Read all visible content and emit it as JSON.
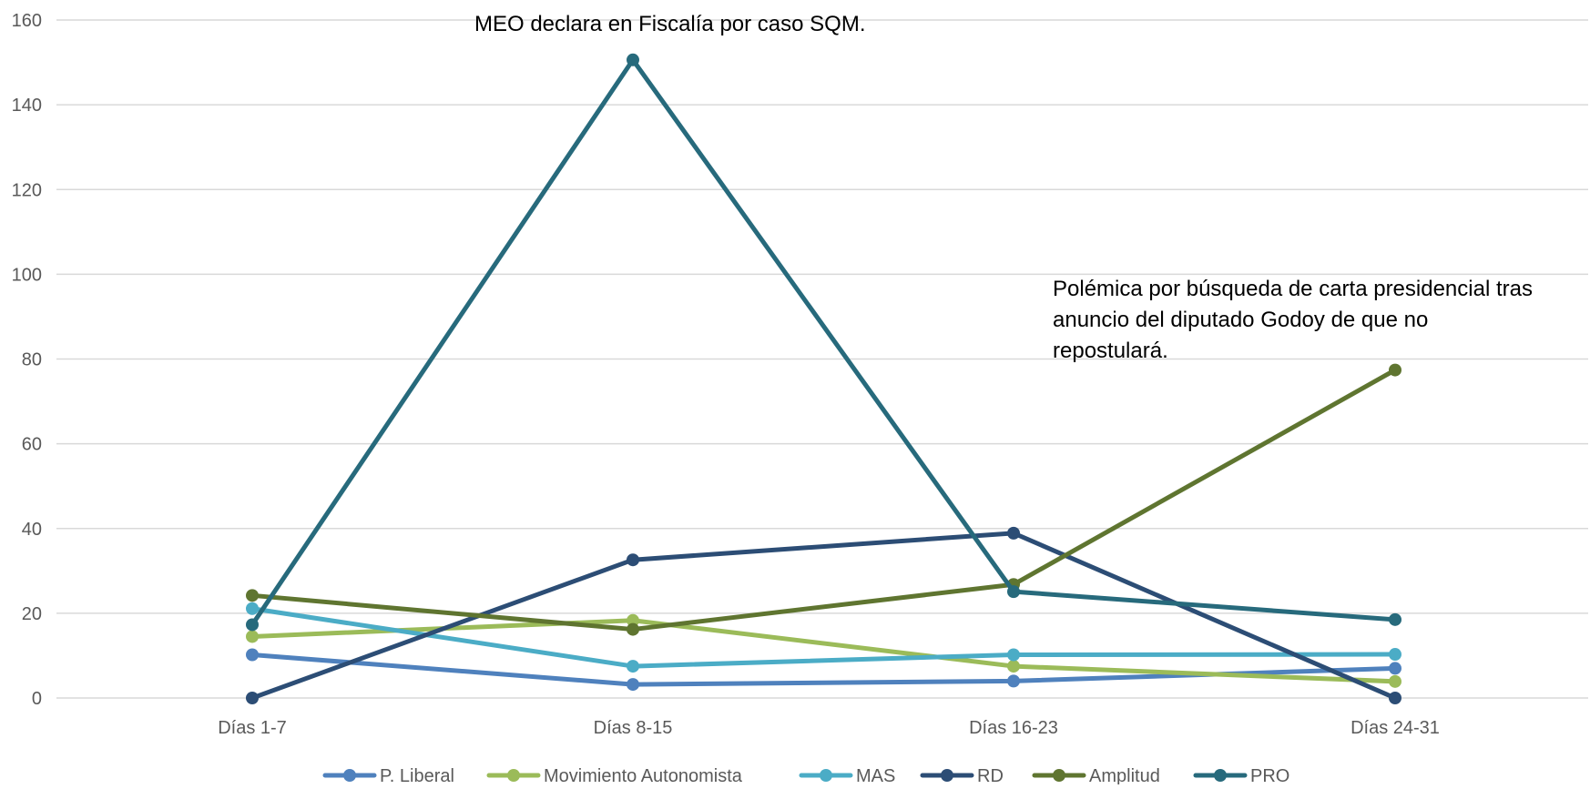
{
  "chart_data": {
    "type": "line",
    "title": "",
    "xlabel": "",
    "ylabel": "",
    "categories": [
      "Días 1-7",
      "Días 8-15",
      "Días 16-23",
      "Días 24-31"
    ],
    "ylim": [
      0,
      160
    ],
    "yticks": [
      0,
      20,
      40,
      60,
      80,
      100,
      120,
      140,
      160
    ],
    "grid": true,
    "legend_position": "bottom",
    "series": [
      {
        "name": "P. Liberal",
        "color": "#4f81bd",
        "values": [
          10.2,
          3.2,
          4,
          7
        ]
      },
      {
        "name": "Movimiento Autonomista",
        "color": "#9bbb59",
        "values": [
          14.5,
          18.3,
          7.5,
          3.9
        ]
      },
      {
        "name": "MAS",
        "color": "#4bacc6",
        "values": [
          21.1,
          7.5,
          10.2,
          10.3
        ]
      },
      {
        "name": "RD",
        "color": "#2c4d75",
        "values": [
          0,
          32.6,
          38.9,
          0
        ]
      },
      {
        "name": "Amplitud",
        "color": "#5f7530",
        "values": [
          24.2,
          16.2,
          26.8,
          77.4
        ]
      },
      {
        "name": "PRO",
        "color": "#276a7c",
        "values": [
          17.3,
          150.6,
          25.1,
          18.5
        ]
      }
    ],
    "annotations": [
      {
        "lines": [
          "MEO declara en Fiscalía por caso SQM."
        ]
      },
      {
        "lines": [
          "Polémica por búsqueda de carta presidencial tras",
          "anuncio del diputado Godoy de que no",
          "repostulará."
        ]
      }
    ]
  }
}
